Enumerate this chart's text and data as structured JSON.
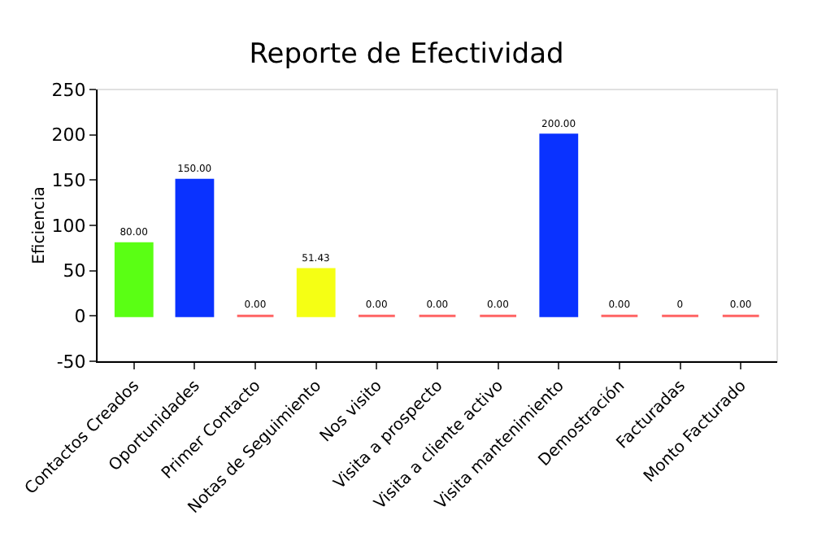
{
  "chart_data": {
    "type": "bar",
    "title": "Reporte de Efectividad",
    "ylabel": "Eficiencia",
    "categories": [
      "Contactos Creados",
      "Oportunidades",
      "Primer Contacto",
      "Notas de Seguimiento",
      "Nos visito",
      "Visita a prospecto",
      "Visita a cliente activo",
      "Visita mantenimiento",
      "Demostración",
      "Facturadas",
      "Monto Facturado"
    ],
    "values": [
      80,
      150,
      0,
      51.43,
      0,
      0,
      0,
      200,
      0,
      0,
      0
    ],
    "colors": [
      "#5aff14",
      "#0a32ff",
      "#ff6464",
      "#f5ff14",
      "#ff6464",
      "#ff6464",
      "#ff6464",
      "#0a32ff",
      "#ff6464",
      "#ff6464",
      "#ff6464"
    ],
    "value_labels": [
      "80.00",
      "150.00",
      "0.00",
      "51.43",
      "0.00",
      "0.00",
      "0.00",
      "200.00",
      "0.00",
      "0",
      "0.00"
    ],
    "ylim": [
      -50,
      250
    ],
    "yticks": [
      -50,
      0,
      50,
      100,
      150,
      200,
      250
    ],
    "grid": false,
    "legend": false
  }
}
